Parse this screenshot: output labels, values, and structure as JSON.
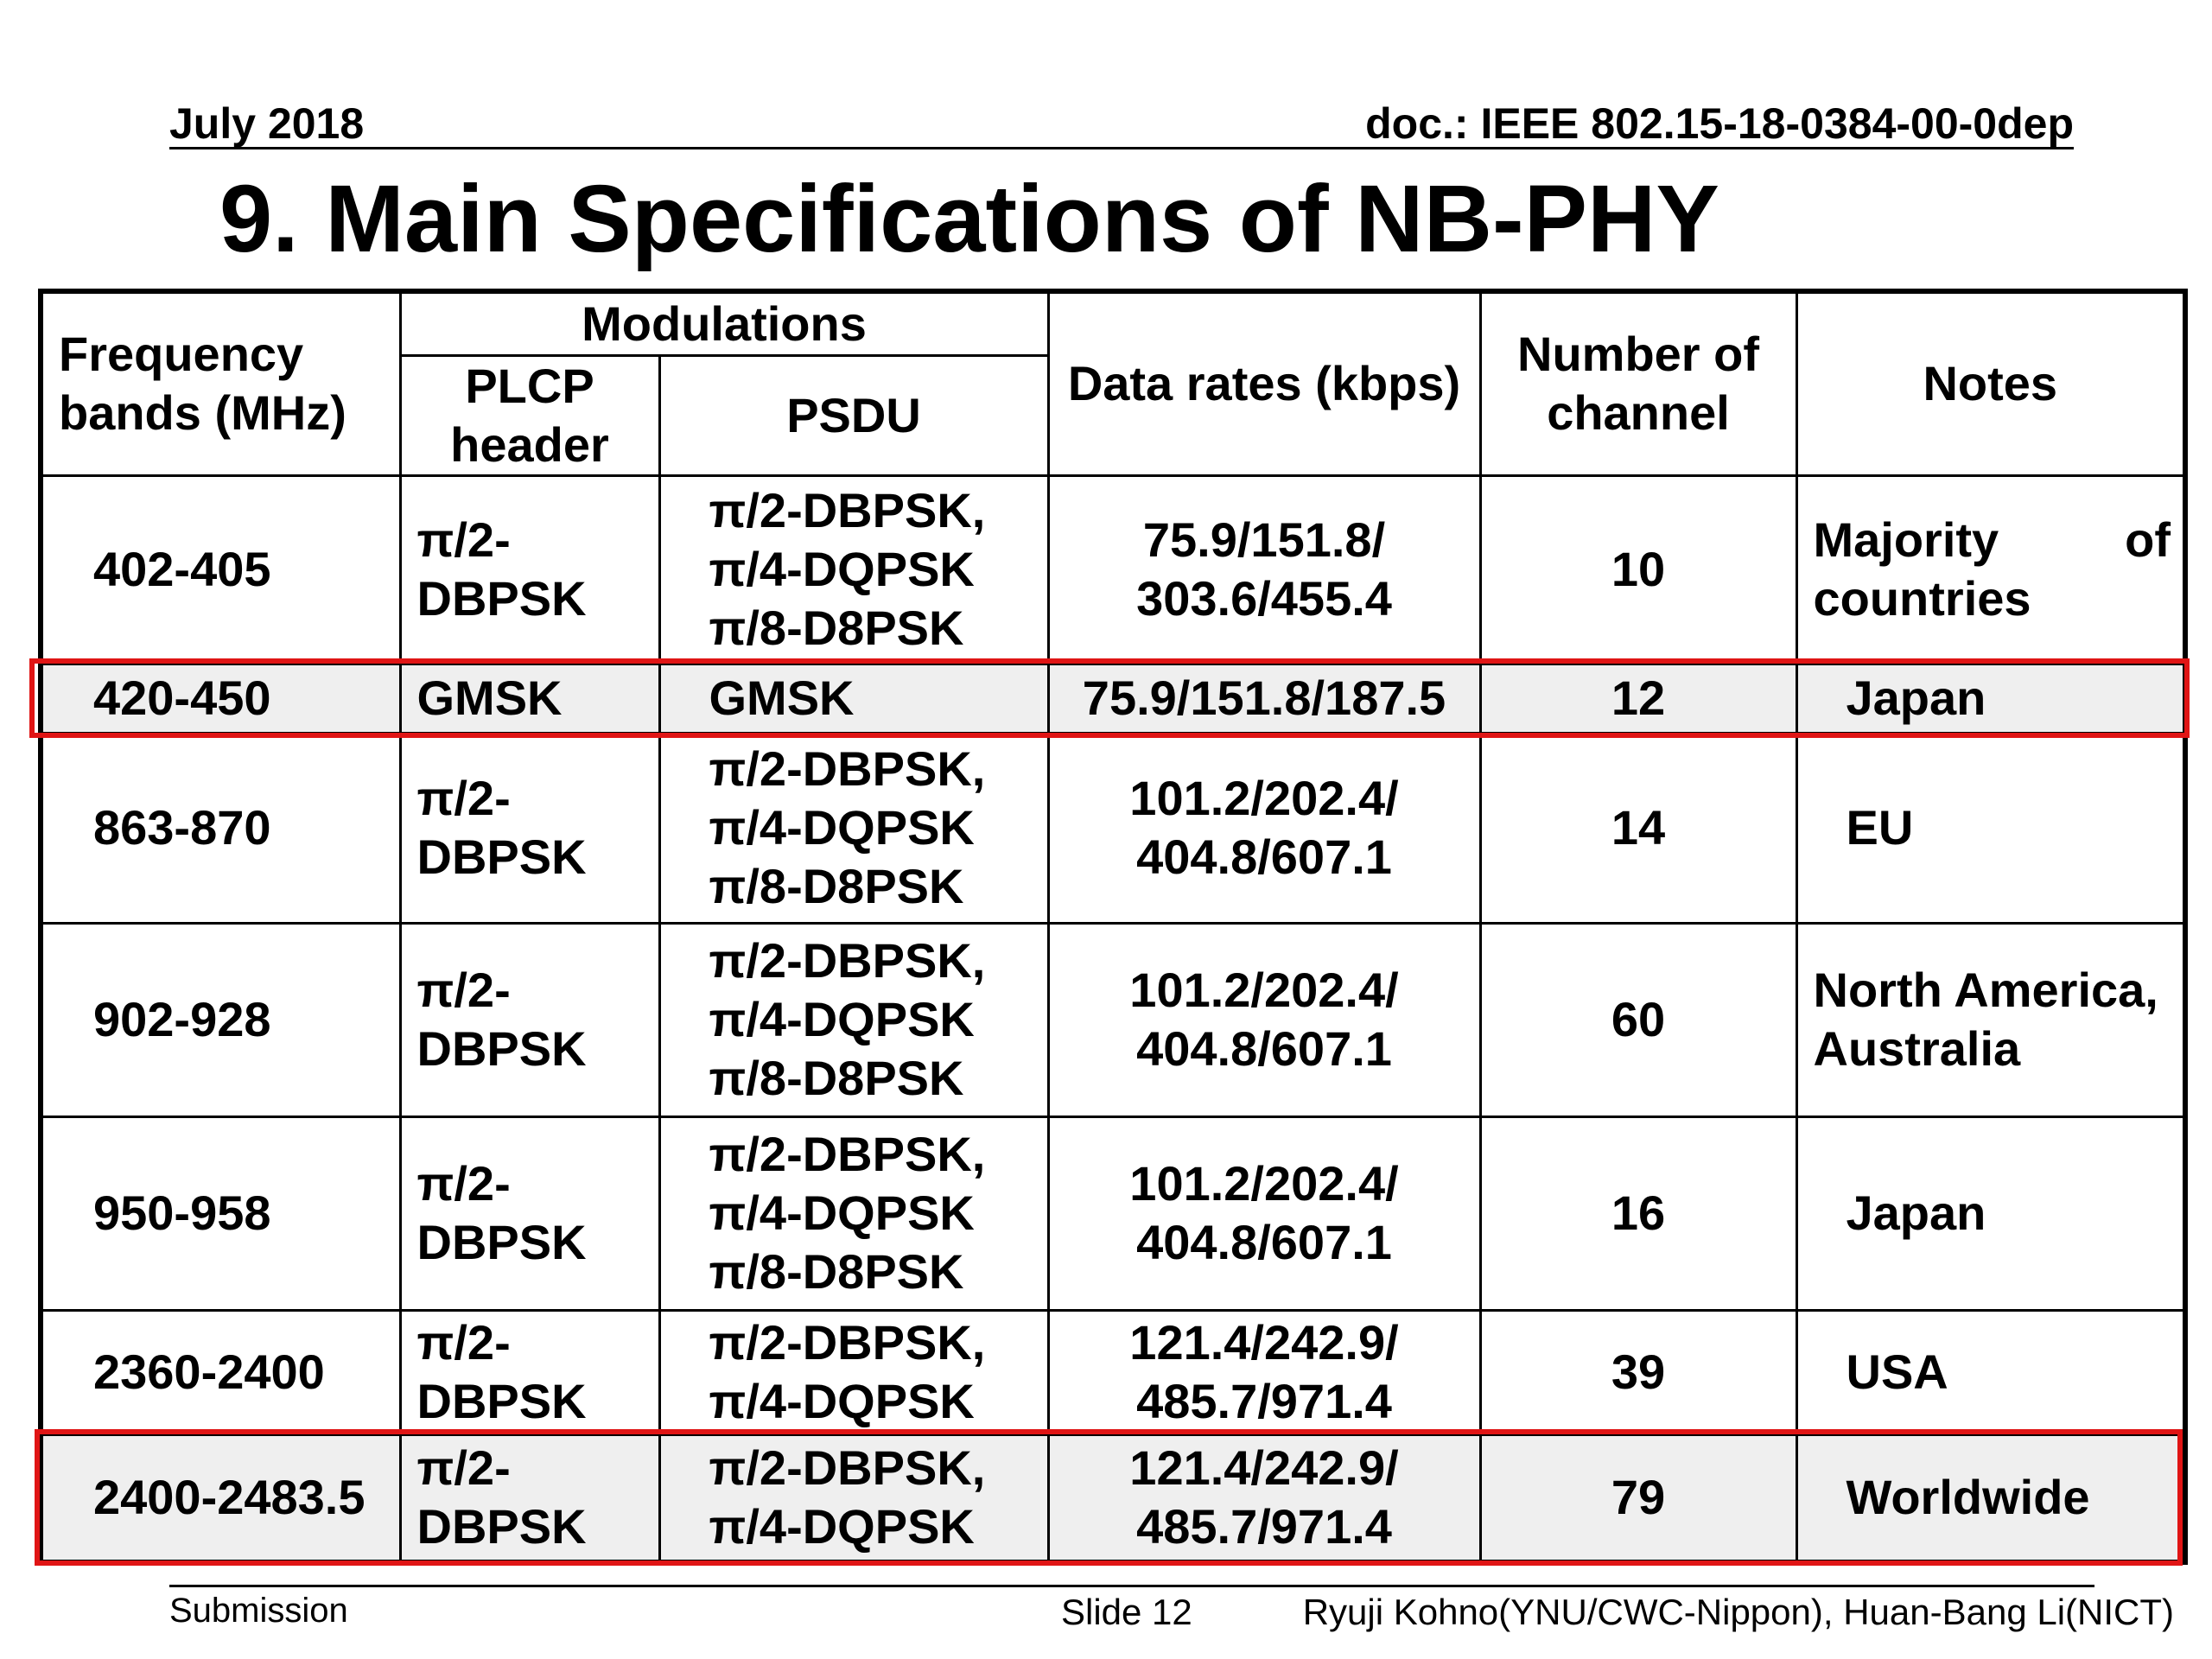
{
  "header": {
    "date": "July 2018",
    "doc": "doc.: IEEE 802.15-18-0384-00-0dep"
  },
  "title": "9. Main Specifications of NB-PHY",
  "table": {
    "headers": {
      "frequency": "Frequency bands (MHz)",
      "modulations": "Modulations",
      "plcp": "PLCP header",
      "psdu": "PSDU",
      "data_rates": "Data rates (kbps)",
      "channels": "Number of channel",
      "notes": "Notes"
    },
    "rows": [
      {
        "freq": "402-405",
        "plcp": "π/2-\nDBPSK",
        "psdu": "π/2-DBPSK,\nπ/4-DQPSK\nπ/8-D8PSK",
        "rate": "75.9/151.8/\n303.6/455.4",
        "channels": "10",
        "notes": "Majority of countries"
      },
      {
        "freq": "420-450",
        "plcp": "GMSK",
        "psdu": "GMSK",
        "rate": "75.9/151.8/187.5",
        "channels": "12",
        "notes": "Japan"
      },
      {
        "freq": "863-870",
        "plcp": "π/2-\nDBPSK",
        "psdu": "π/2-DBPSK,\nπ/4-DQPSK\nπ/8-D8PSK",
        "rate": "101.2/202.4/\n404.8/607.1",
        "channels": "14",
        "notes": "EU"
      },
      {
        "freq": "902-928",
        "plcp": "π/2-\nDBPSK",
        "psdu": "π/2-DBPSK,\nπ/4-DQPSK\nπ/8-D8PSK",
        "rate": "101.2/202.4/\n404.8/607.1",
        "channels": "60",
        "notes": "North America,\nAustralia"
      },
      {
        "freq": "950-958",
        "plcp": "π/2-\nDBPSK",
        "psdu": "π/2-DBPSK,\nπ/4-DQPSK\nπ/8-D8PSK",
        "rate": "101.2/202.4/\n404.8/607.1",
        "channels": "16",
        "notes": "Japan"
      },
      {
        "freq": "2360-2400",
        "plcp": "π/2-\nDBPSK",
        "psdu": "π/2-DBPSK,\nπ/4-DQPSK",
        "rate": "121.4/242.9/\n485.7/971.4",
        "channels": "39",
        "notes": "USA"
      },
      {
        "freq": "2400-2483.5",
        "plcp": "π/2-\nDBPSK",
        "psdu": "π/2-DBPSK,\nπ/4-DQPSK",
        "rate": "121.4/242.9/\n485.7/971.4",
        "channels": "79",
        "notes": "Worldwide"
      }
    ]
  },
  "highlight_color": "#e01515",
  "footer": {
    "submission": "Submission",
    "slide": "Slide 12",
    "authors": "Ryuji Kohno(YNU/CWC-Nippon), Huan-Bang Li(NICT)"
  }
}
